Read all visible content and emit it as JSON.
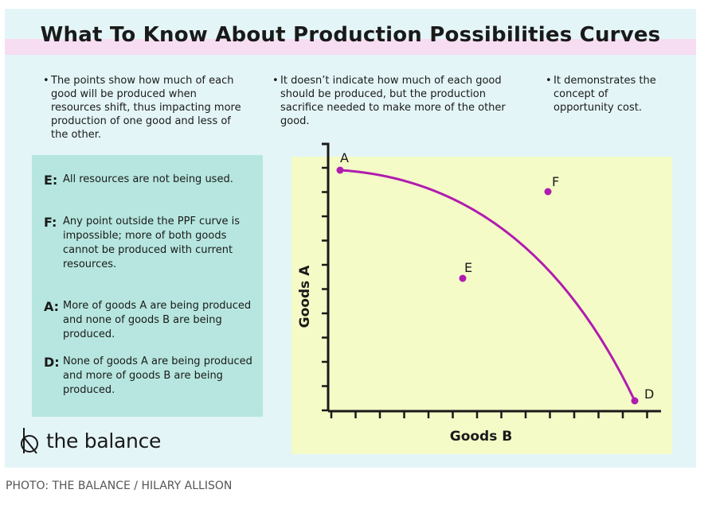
{
  "title": "What To Know About Production Possibilities Curves",
  "bullets": [
    "The points show how much of each good will be produced when resources shift, thus impacting more production of one good and less of the other.",
    "It doesn’t indicate how much of each good should be produced, but the production sacrifice needed to make more of the other good.",
    "It demonstrates the concept of opportunity cost."
  ],
  "bullet_marker": "•",
  "legend": [
    {
      "key": "E:",
      "text": "All resources are not being used."
    },
    {
      "key": "F:",
      "text": "Any point outside the PPF curve is impossible; more of both goods cannot be produced with current resources."
    },
    {
      "key": "A:",
      "text": "More of goods A are being produced and none of goods B are being produced."
    },
    {
      "key": "D:",
      "text": "None of goods A are being produced and more of goods B are being produced."
    }
  ],
  "chart": {
    "xlabel": "Goods B",
    "ylabel": "Goods A",
    "points": {
      "A": "A",
      "D": "D",
      "E": "E",
      "F": "F"
    },
    "colors": {
      "curve": "#b01cb0",
      "point": "#b01cb0",
      "plot_bg": "#f4fbc6",
      "axis": "#1a1a1a"
    }
  },
  "brand": {
    "name": "the balance",
    "icon": "the-balance-logo-icon"
  },
  "caption": "PHOTO: THE BALANCE / HILARY ALLISON"
}
